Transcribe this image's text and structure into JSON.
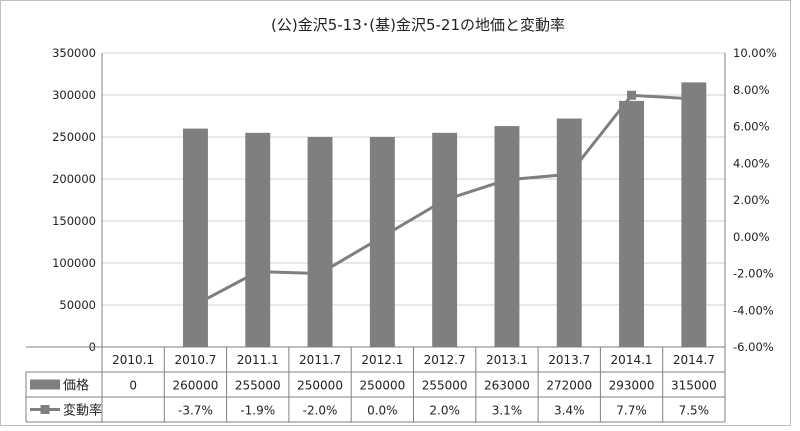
{
  "chart_data": {
    "type": "bar",
    "title": "(公)金沢5-13･(基)金沢5-21の地価と変動率",
    "categories": [
      "2010.1",
      "2010.7",
      "2011.1",
      "2011.7",
      "2012.1",
      "2012.7",
      "2013.1",
      "2013.7",
      "2014.1",
      "2014.7"
    ],
    "series": [
      {
        "name": "価格",
        "type": "bar",
        "axis": "left",
        "values": [
          0,
          260000,
          255000,
          250000,
          250000,
          255000,
          263000,
          272000,
          293000,
          315000
        ],
        "table_labels": [
          "0",
          "260000",
          "255000",
          "250000",
          "250000",
          "255000",
          "263000",
          "272000",
          "293000",
          "315000"
        ],
        "color": "#7f7f7f"
      },
      {
        "name": "変動率",
        "type": "line",
        "axis": "right",
        "values": [
          null,
          -3.7,
          -1.9,
          -2.0,
          0.0,
          2.0,
          3.1,
          3.4,
          7.7,
          7.5
        ],
        "table_labels": [
          "",
          "-3.7%",
          "-1.9%",
          "-2.0%",
          "0.0%",
          "2.0%",
          "3.1%",
          "3.4%",
          "7.7%",
          "7.5%"
        ],
        "color": "#7f7f7f"
      }
    ],
    "y_left": {
      "min": 0,
      "max": 350000,
      "ticks": [
        0,
        50000,
        100000,
        150000,
        200000,
        250000,
        300000,
        350000
      ],
      "tick_labels": [
        "0",
        "50000",
        "100000",
        "150000",
        "200000",
        "250000",
        "300000",
        "350000"
      ]
    },
    "y_right": {
      "min": -6,
      "max": 10,
      "ticks": [
        -6,
        -4,
        -2,
        0,
        2,
        4,
        6,
        8,
        10
      ],
      "tick_labels": [
        "-6.00%",
        "-4.00%",
        "-2.00%",
        "0.00%",
        "2.00%",
        "4.00%",
        "6.00%",
        "8.00%",
        "10.00%"
      ]
    },
    "grid": true,
    "legend": "data-table"
  }
}
